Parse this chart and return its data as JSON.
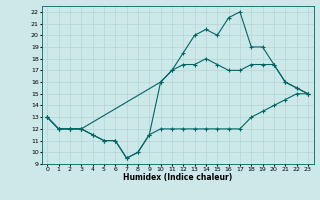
{
  "xlabel": "Humidex (Indice chaleur)",
  "xlim": [
    -0.5,
    23.5
  ],
  "ylim": [
    9,
    22.5
  ],
  "xticks": [
    0,
    1,
    2,
    3,
    4,
    5,
    6,
    7,
    8,
    9,
    10,
    11,
    12,
    13,
    14,
    15,
    16,
    17,
    18,
    19,
    20,
    21,
    22,
    23
  ],
  "yticks": [
    9,
    10,
    11,
    12,
    13,
    14,
    15,
    16,
    17,
    18,
    19,
    20,
    21,
    22
  ],
  "bg_color": "#cce8e8",
  "grid_color": "#b0d0d0",
  "line_color": "#006666",
  "line1": {
    "x": [
      0,
      1,
      2,
      3,
      4,
      5,
      6,
      7,
      8,
      9,
      10,
      11,
      12,
      13,
      14,
      15,
      16,
      17,
      18,
      19,
      20,
      21,
      22,
      23
    ],
    "y": [
      13,
      12,
      12,
      12,
      11.5,
      11,
      11,
      9.5,
      10,
      11.5,
      12,
      12,
      12,
      12,
      12,
      12,
      12,
      12,
      13,
      13.5,
      14,
      14.5,
      15,
      15
    ]
  },
  "line2": {
    "x": [
      0,
      1,
      2,
      3,
      4,
      5,
      6,
      7,
      8,
      9,
      10,
      11,
      12,
      13,
      14,
      15,
      16,
      17,
      18,
      19,
      20,
      21,
      22,
      23
    ],
    "y": [
      13,
      12,
      12,
      12,
      11.5,
      11,
      11,
      9.5,
      10,
      11.5,
      16,
      17,
      17.5,
      17.5,
      18,
      17.5,
      17,
      17,
      17.5,
      17.5,
      17.5,
      16,
      15.5,
      15
    ]
  },
  "line3": {
    "x": [
      0,
      1,
      2,
      3,
      10,
      11,
      12,
      13,
      14,
      15,
      16,
      17,
      18,
      19,
      20,
      21,
      22,
      23
    ],
    "y": [
      13,
      12,
      12,
      12,
      16,
      17,
      18.5,
      20,
      20.5,
      20,
      21.5,
      22,
      19,
      19,
      17.5,
      16,
      15.5,
      15
    ]
  }
}
